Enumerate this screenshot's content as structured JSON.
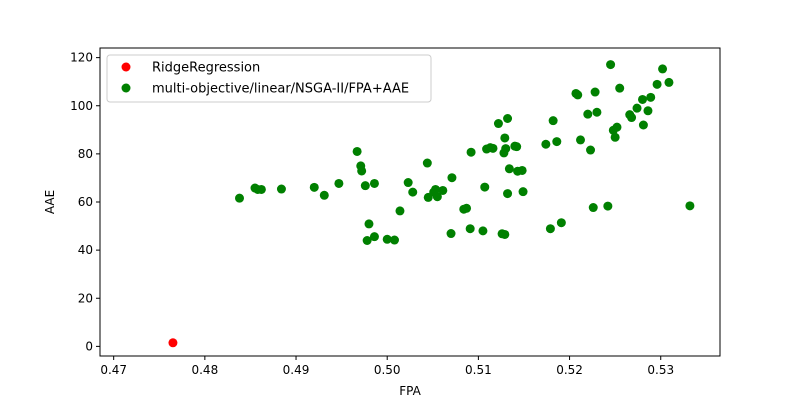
{
  "chart_data": {
    "type": "scatter",
    "title": "",
    "xlabel": "FPA",
    "ylabel": "AAE",
    "xlim": [
      0.4685,
      0.5365
    ],
    "ylim": [
      -4,
      124
    ],
    "xticks": [
      0.47,
      0.48,
      0.49,
      0.5,
      0.51,
      0.52,
      0.53
    ],
    "xtick_labels": [
      "0.47",
      "0.48",
      "0.49",
      "0.50",
      "0.51",
      "0.52",
      "0.53"
    ],
    "yticks": [
      0,
      20,
      40,
      60,
      80,
      100,
      120
    ],
    "ytick_labels": [
      "0",
      "20",
      "40",
      "60",
      "80",
      "100",
      "120"
    ],
    "grid": false,
    "legend_position": "upper-left",
    "series": [
      {
        "name": "RidgeRegression",
        "color": "#ff0000",
        "points": [
          [
            0.4765,
            1.5
          ]
        ]
      },
      {
        "name": "multi-objective/linear/NSGA-II/FPA+AAE",
        "color": "#008000",
        "points": [
          [
            0.4838,
            61.6
          ],
          [
            0.4855,
            65.8
          ],
          [
            0.4858,
            65.2
          ],
          [
            0.4862,
            65.2
          ],
          [
            0.4884,
            65.4
          ],
          [
            0.492,
            66.1
          ],
          [
            0.4931,
            62.8
          ],
          [
            0.4947,
            67.7
          ],
          [
            0.4967,
            81.0
          ],
          [
            0.4971,
            75.0
          ],
          [
            0.4972,
            72.9
          ],
          [
            0.4976,
            66.8
          ],
          [
            0.4978,
            44.0
          ],
          [
            0.498,
            50.9
          ],
          [
            0.4986,
            45.6
          ],
          [
            0.4986,
            67.7
          ],
          [
            0.5,
            44.5
          ],
          [
            0.5008,
            44.2
          ],
          [
            0.5014,
            56.3
          ],
          [
            0.5023,
            68.1
          ],
          [
            0.5028,
            64.1
          ],
          [
            0.5044,
            76.2
          ],
          [
            0.5045,
            61.9
          ],
          [
            0.5051,
            64.1
          ],
          [
            0.5053,
            65.2
          ],
          [
            0.5055,
            62.2
          ],
          [
            0.5061,
            64.8
          ],
          [
            0.5071,
            70.1
          ],
          [
            0.507,
            46.9
          ],
          [
            0.5084,
            57.0
          ],
          [
            0.5087,
            57.4
          ],
          [
            0.5091,
            48.9
          ],
          [
            0.5092,
            80.7
          ],
          [
            0.5105,
            48.0
          ],
          [
            0.5107,
            66.2
          ],
          [
            0.5109,
            82.0
          ],
          [
            0.5113,
            82.6
          ],
          [
            0.5116,
            82.3
          ],
          [
            0.5122,
            92.6
          ],
          [
            0.5126,
            46.8
          ],
          [
            0.5129,
            46.5
          ],
          [
            0.5128,
            80.4
          ],
          [
            0.5129,
            86.6
          ],
          [
            0.513,
            82.2
          ],
          [
            0.5132,
            63.5
          ],
          [
            0.5132,
            94.7
          ],
          [
            0.5134,
            73.8
          ],
          [
            0.514,
            83.2
          ],
          [
            0.5142,
            83.0
          ],
          [
            0.5143,
            72.8
          ],
          [
            0.5148,
            73.1
          ],
          [
            0.5149,
            64.3
          ],
          [
            0.5174,
            84.0
          ],
          [
            0.5179,
            48.9
          ],
          [
            0.5182,
            93.8
          ],
          [
            0.5186,
            85.1
          ],
          [
            0.5191,
            51.4
          ],
          [
            0.5207,
            105.1
          ],
          [
            0.5209,
            104.5
          ],
          [
            0.5212,
            85.8
          ],
          [
            0.522,
            96.5
          ],
          [
            0.5223,
            81.6
          ],
          [
            0.5226,
            57.7
          ],
          [
            0.5228,
            105.7
          ],
          [
            0.523,
            97.3
          ],
          [
            0.5242,
            58.3
          ],
          [
            0.5245,
            117.1
          ],
          [
            0.5248,
            89.8
          ],
          [
            0.525,
            86.9
          ],
          [
            0.5252,
            91.1
          ],
          [
            0.5255,
            107.3
          ],
          [
            0.5266,
            96.3
          ],
          [
            0.5268,
            95.1
          ],
          [
            0.5274,
            99.0
          ],
          [
            0.528,
            102.6
          ],
          [
            0.5281,
            92.0
          ],
          [
            0.5286,
            97.9
          ],
          [
            0.5289,
            103.5
          ],
          [
            0.5296,
            108.9
          ],
          [
            0.5302,
            115.3
          ],
          [
            0.5309,
            109.7
          ],
          [
            0.5332,
            58.4
          ]
        ]
      }
    ]
  }
}
